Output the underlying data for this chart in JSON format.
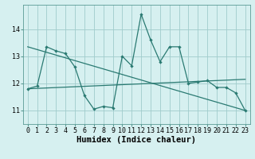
{
  "title": "",
  "xlabel": "Humidex (Indice chaleur)",
  "ylabel": "",
  "bg_color": "#d6f0f0",
  "grid_color": "#a0cccc",
  "line_color": "#2a7a72",
  "xlim": [
    -0.5,
    23.5
  ],
  "ylim": [
    10.5,
    14.9
  ],
  "yticks": [
    11,
    12,
    13,
    14
  ],
  "xticks": [
    0,
    1,
    2,
    3,
    4,
    5,
    6,
    7,
    8,
    9,
    10,
    11,
    12,
    13,
    14,
    15,
    16,
    17,
    18,
    19,
    20,
    21,
    22,
    23
  ],
  "series1_x": [
    0,
    1,
    2,
    3,
    4,
    5,
    6,
    7,
    8,
    9,
    10,
    11,
    12,
    13,
    14,
    15,
    16,
    17,
    18,
    19,
    20,
    21,
    22,
    23
  ],
  "series1_y": [
    11.8,
    11.9,
    13.35,
    13.2,
    13.1,
    12.6,
    11.55,
    11.05,
    11.15,
    11.1,
    13.0,
    12.65,
    14.55,
    13.6,
    12.8,
    13.35,
    13.35,
    12.0,
    12.05,
    12.1,
    11.85,
    11.85,
    11.65,
    11.0
  ],
  "series2_x": [
    0,
    23
  ],
  "series2_y": [
    11.8,
    12.15
  ],
  "series3_x": [
    0,
    23
  ],
  "series3_y": [
    13.35,
    11.0
  ],
  "tick_fontsize": 6,
  "label_fontsize": 7.5
}
